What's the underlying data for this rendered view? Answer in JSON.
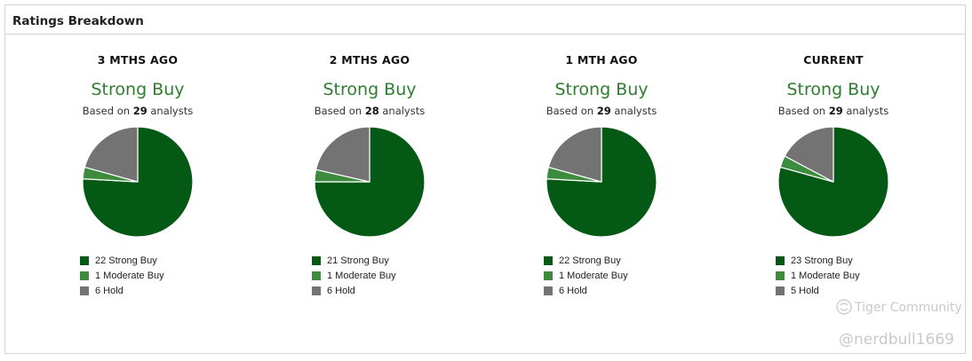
{
  "panel": {
    "title": "Ratings Breakdown"
  },
  "colors": {
    "strong_buy": "#045a15",
    "moderate_buy": "#3d8c3d",
    "hold": "#737373",
    "consensus_text": "#2f7d2f"
  },
  "columns": [
    {
      "period": "3 MTHS AGO",
      "consensus": "Strong Buy",
      "based_prefix": "Based on",
      "analysts": "29",
      "based_suffix": "analysts"
    },
    {
      "period": "2 MTHS AGO",
      "consensus": "Strong Buy",
      "based_prefix": "Based on",
      "analysts": "28",
      "based_suffix": "analysts"
    },
    {
      "period": "1 MTH AGO",
      "consensus": "Strong Buy",
      "based_prefix": "Based on",
      "analysts": "29",
      "based_suffix": "analysts"
    },
    {
      "period": "CURRENT",
      "consensus": "Strong Buy",
      "based_prefix": "Based on",
      "analysts": "29",
      "based_suffix": "analysts"
    }
  ],
  "chart_data": [
    {
      "type": "pie",
      "title": "3 MTHS AGO",
      "categories": [
        "Strong Buy",
        "Moderate Buy",
        "Hold"
      ],
      "values": [
        22,
        1,
        6
      ],
      "legend": [
        "22 Strong Buy",
        "1 Moderate Buy",
        "6 Hold"
      ],
      "legend_position": "bottom"
    },
    {
      "type": "pie",
      "title": "2 MTHS AGO",
      "categories": [
        "Strong Buy",
        "Moderate Buy",
        "Hold"
      ],
      "values": [
        21,
        1,
        6
      ],
      "legend": [
        "21 Strong Buy",
        "1 Moderate Buy",
        "6 Hold"
      ],
      "legend_position": "bottom"
    },
    {
      "type": "pie",
      "title": "1 MTH AGO",
      "categories": [
        "Strong Buy",
        "Moderate Buy",
        "Hold"
      ],
      "values": [
        22,
        1,
        6
      ],
      "legend": [
        "22 Strong Buy",
        "1 Moderate Buy",
        "6 Hold"
      ],
      "legend_position": "bottom"
    },
    {
      "type": "pie",
      "title": "CURRENT",
      "categories": [
        "Strong Buy",
        "Moderate Buy",
        "Hold"
      ],
      "values": [
        23,
        1,
        5
      ],
      "legend": [
        "23 Strong Buy",
        "1 Moderate Buy",
        "5 Hold"
      ],
      "legend_position": "bottom"
    }
  ],
  "watermark": {
    "line1": "Tiger Community",
    "line2": "@nerdbull1669"
  }
}
